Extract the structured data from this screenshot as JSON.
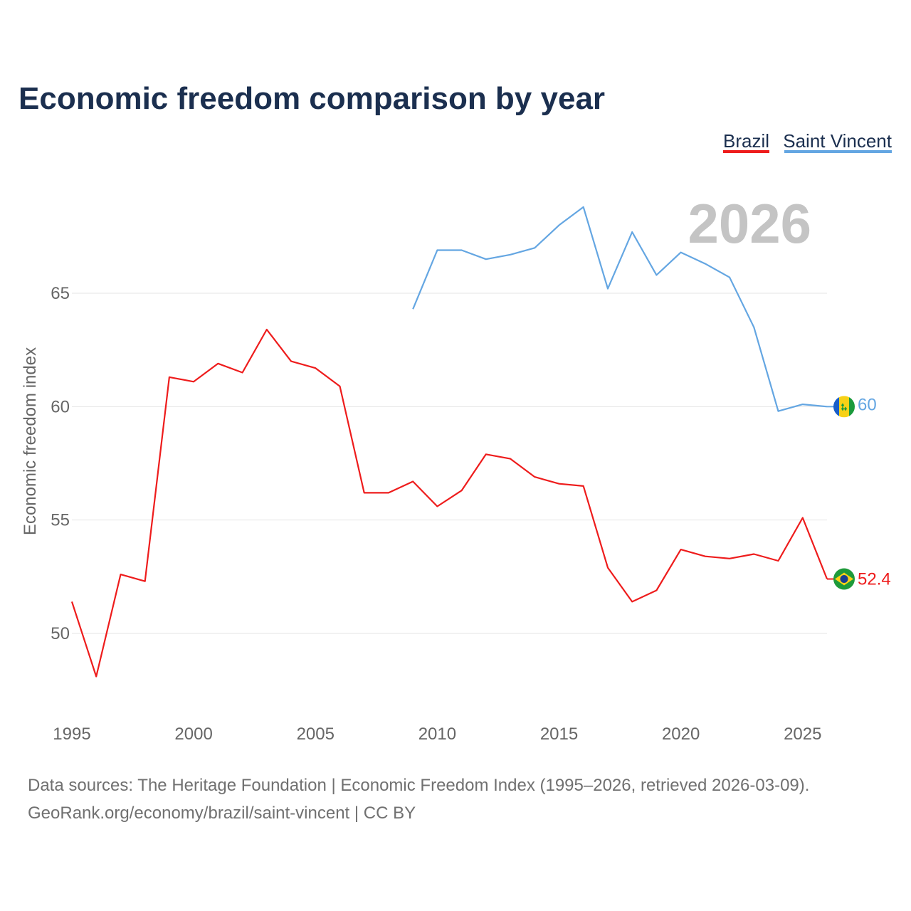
{
  "title": "Economic freedom comparison by year",
  "current_year_label": "2026",
  "legend": [
    {
      "name": "Brazil",
      "color": "#ee1c1c"
    },
    {
      "name": "Saint Vincent",
      "color": "#64a6e2"
    }
  ],
  "end_labels": {
    "brazil": "52.4",
    "saint_vincent": "60"
  },
  "flags": {
    "brazil": "brazil-flag-icon",
    "saint_vincent": "saint-vincent-flag-icon"
  },
  "source": {
    "line1": "Data sources: The Heritage Foundation | Economic Freedom Index (1995–2026, retrieved 2026-03-09).",
    "line2": "GeoRank.org/economy/brazil/saint-vincent | CC BY"
  },
  "chart_data": {
    "type": "line",
    "title": "Economic freedom comparison by year",
    "xlabel": "",
    "ylabel": "Economic freedom index",
    "xlim": [
      1995,
      2026
    ],
    "ylim": [
      46,
      71
    ],
    "x_ticks": [
      1995,
      2000,
      2005,
      2010,
      2015,
      2020,
      2025
    ],
    "y_ticks": [
      50,
      55,
      60,
      65
    ],
    "grid": true,
    "legend_position": "top-right",
    "series": [
      {
        "name": "Brazil",
        "color": "#ee1c1c",
        "x": [
          1995,
          1996,
          1997,
          1998,
          1999,
          2000,
          2001,
          2002,
          2003,
          2004,
          2005,
          2006,
          2007,
          2008,
          2009,
          2010,
          2011,
          2012,
          2013,
          2014,
          2015,
          2016,
          2017,
          2018,
          2019,
          2020,
          2021,
          2022,
          2023,
          2024,
          2025,
          2026
        ],
        "values": [
          51.4,
          48.1,
          52.6,
          52.3,
          61.3,
          61.1,
          61.9,
          61.5,
          63.4,
          62.0,
          61.7,
          60.9,
          56.2,
          56.2,
          56.7,
          55.6,
          56.3,
          57.9,
          57.7,
          56.9,
          56.6,
          56.5,
          52.9,
          51.4,
          51.9,
          53.7,
          53.4,
          53.3,
          53.5,
          53.2,
          55.1,
          52.4
        ]
      },
      {
        "name": "Saint Vincent",
        "color": "#64a6e2",
        "x": [
          2009,
          2010,
          2011,
          2012,
          2013,
          2014,
          2015,
          2016,
          2017,
          2018,
          2019,
          2020,
          2021,
          2022,
          2023,
          2024,
          2025,
          2026
        ],
        "values": [
          64.3,
          66.9,
          66.9,
          66.5,
          66.7,
          67.0,
          68.0,
          68.8,
          65.2,
          67.7,
          65.8,
          66.8,
          66.3,
          65.7,
          63.5,
          59.8,
          60.1,
          60.0
        ]
      }
    ]
  }
}
